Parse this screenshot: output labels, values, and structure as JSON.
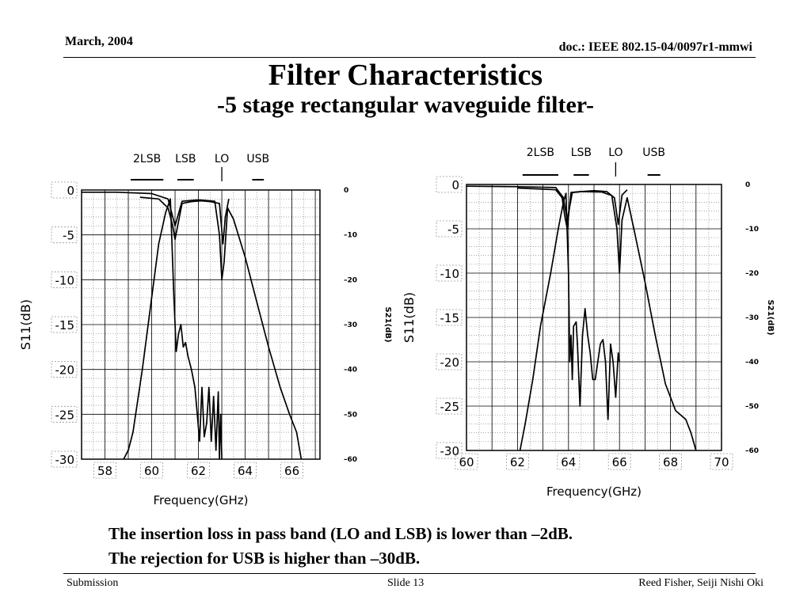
{
  "header": {
    "date": "March, 2004",
    "doc": "doc.: IEEE 802.15-04/0097r1-mmwi"
  },
  "title": "Filter Characteristics",
  "subtitle": "-5 stage rectangular waveguide filter-",
  "notes": [
    "The insertion loss in pass band (LO and LSB) is lower than –2dB.",
    "The rejection for USB is higher than –30dB."
  ],
  "footer": {
    "left": "Submission",
    "center": "Slide 13",
    "right": "Reed Fisher, Seiji Nishi  Oki"
  },
  "chart_data": [
    {
      "type": "line",
      "xlabel": "Frequency(GHz)",
      "ylabel": "S11(dB)",
      "ylabel_right": "S21(dB)",
      "xlim": [
        57,
        67.2
      ],
      "ylim": [
        -30,
        0
      ],
      "ylim_right": [
        -60,
        0
      ],
      "xticks": [
        58,
        60,
        62,
        64,
        66
      ],
      "xtick_labels": [
        "58",
        "60",
        "62",
        "64",
        "66"
      ],
      "yticks": [
        0,
        -5,
        -10,
        -15,
        -20,
        -25,
        -30
      ],
      "ytick_labels": [
        "0",
        "-5",
        "-10",
        "-15",
        "-20",
        "-25",
        "-30"
      ],
      "yticks_right": [
        0,
        -10,
        -20,
        -30,
        -40,
        -50,
        -60
      ],
      "ytick_labels_right": [
        "0",
        "–10",
        "–20",
        "–30",
        "–40",
        "–50",
        "–60"
      ],
      "grid": true,
      "bands": [
        {
          "label": "2LSB",
          "x1": 59.1,
          "x2": 60.5
        },
        {
          "label": "LSB",
          "x1": 61.1,
          "x2": 61.8
        },
        {
          "label": "LO",
          "x1": 63.0,
          "x2": 63.0
        },
        {
          "label": "USB",
          "x1": 64.3,
          "x2": 64.8
        }
      ],
      "series": [
        {
          "axis": "left",
          "x": [
            58.8,
            59.0,
            59.2,
            59.6,
            60.0,
            60.3,
            60.6,
            60.8,
            60.95,
            61.05,
            61.15,
            61.25,
            61.35,
            61.45,
            61.55,
            61.7,
            61.85,
            61.95,
            62.05,
            62.15,
            62.25,
            62.35,
            62.45,
            62.55,
            62.65,
            62.75,
            62.85,
            62.9,
            62.95,
            63.0
          ],
          "y": [
            -30,
            -29,
            -27,
            -20,
            -12,
            -6,
            -2.5,
            -1,
            -12,
            -18,
            -16,
            -15,
            -17.5,
            -17,
            -18.5,
            -20,
            -22,
            -25,
            -28,
            -22,
            -27.5,
            -26,
            -22,
            -28,
            -23,
            -29,
            -22.5,
            -30,
            -25,
            -30
          ]
        },
        {
          "axis": "left",
          "x": [
            59.5,
            60.3,
            60.7,
            60.9,
            61.0,
            61.3,
            61.7,
            62.1,
            62.5,
            62.9,
            63.05,
            63.15,
            63.3
          ],
          "y": [
            -0.8,
            -1,
            -2,
            -4,
            -5.5,
            -1.5,
            -1.3,
            -1.2,
            -1.3,
            -1.5,
            -6,
            -3,
            -1
          ]
        },
        {
          "axis": "right",
          "x": [
            57.0,
            58.5,
            60.0,
            60.7,
            60.9,
            61.0,
            61.3,
            62.0,
            62.7,
            62.9,
            63.0,
            63.1,
            63.25,
            63.5,
            64.0,
            64.5,
            65.0,
            65.5,
            65.9,
            66.2,
            66.4
          ],
          "y": [
            -0.5,
            -0.5,
            -0.8,
            -2,
            -6,
            -8,
            -2.5,
            -2.2,
            -2.5,
            -10,
            -20,
            -16,
            -4,
            -6.5,
            -15,
            -25,
            -35,
            -44,
            -50,
            -54,
            -60
          ]
        }
      ]
    },
    {
      "type": "line",
      "xlabel": "Frequency(GHz)",
      "ylabel": "S11(dB)",
      "ylabel_right": "S21(dB)",
      "xlim": [
        60,
        70
      ],
      "ylim": [
        -30,
        0
      ],
      "ylim_right": [
        -60,
        0
      ],
      "xticks": [
        60,
        62,
        64,
        66,
        68,
        70
      ],
      "xtick_labels": [
        "60",
        "62",
        "64",
        "66",
        "68",
        "70"
      ],
      "yticks": [
        0,
        -5,
        -10,
        -15,
        -20,
        -25,
        -30
      ],
      "ytick_labels": [
        "0",
        "-5",
        "-10",
        "-15",
        "-20",
        "-25",
        "-30"
      ],
      "yticks_right": [
        0,
        -10,
        -20,
        -30,
        -40,
        -50,
        -60
      ],
      "ytick_labels_right": [
        "0",
        "–10",
        "–20",
        "–30",
        "–40",
        "–50",
        "–60"
      ],
      "grid": true,
      "bands": [
        {
          "label": "2LSB",
          "x1": 62.2,
          "x2": 63.6
        },
        {
          "label": "LSB",
          "x1": 64.2,
          "x2": 64.8
        },
        {
          "label": "LO",
          "x1": 65.85,
          "x2": 65.85
        },
        {
          "label": "USB",
          "x1": 67.1,
          "x2": 67.6
        }
      ],
      "series": [
        {
          "axis": "left",
          "x": [
            62.1,
            62.3,
            62.6,
            62.9,
            63.3,
            63.6,
            63.8,
            63.9,
            64.0,
            64.05,
            64.1,
            64.15,
            64.2,
            64.3,
            64.35,
            64.45,
            64.55,
            64.65,
            64.75,
            64.85,
            64.95,
            65.05,
            65.15,
            65.25,
            65.35,
            65.45,
            65.55,
            65.65,
            65.75,
            65.85,
            65.95,
            66.0
          ],
          "y": [
            -30,
            -27,
            -22,
            -16,
            -10,
            -5,
            -2,
            -1,
            -10,
            -20,
            -17,
            -22,
            -16,
            -15.5,
            -18,
            -25,
            -17,
            -14,
            -17,
            -19,
            -22,
            -22,
            -20,
            -18,
            -17.5,
            -20,
            -26.5,
            -18,
            -20,
            -24,
            -19,
            -20
          ]
        },
        {
          "axis": "left",
          "x": [
            62.0,
            63.5,
            63.75,
            63.85,
            63.95,
            64.1,
            64.5,
            65.0,
            65.5,
            65.8,
            65.95,
            66.1,
            66.3
          ],
          "y": [
            -0.4,
            -0.6,
            -1.5,
            -3.5,
            -5,
            -0.9,
            -0.8,
            -0.7,
            -0.8,
            -1.5,
            -4.5,
            -1.2,
            -0.6
          ]
        },
        {
          "axis": "right",
          "x": [
            60.0,
            62.0,
            63.5,
            63.8,
            63.95,
            64.15,
            64.5,
            65.3,
            65.7,
            65.9,
            66.0,
            66.1,
            66.3,
            66.6,
            67.0,
            67.4,
            67.8,
            68.2,
            68.6,
            68.8,
            69.0
          ],
          "y": [
            -0.4,
            -0.5,
            -0.7,
            -3,
            -8,
            -1.8,
            -1.6,
            -1.7,
            -2.5,
            -10,
            -20,
            -8,
            -3,
            -11,
            -22,
            -34,
            -45,
            -51,
            -53,
            -56,
            -60
          ]
        }
      ]
    }
  ]
}
